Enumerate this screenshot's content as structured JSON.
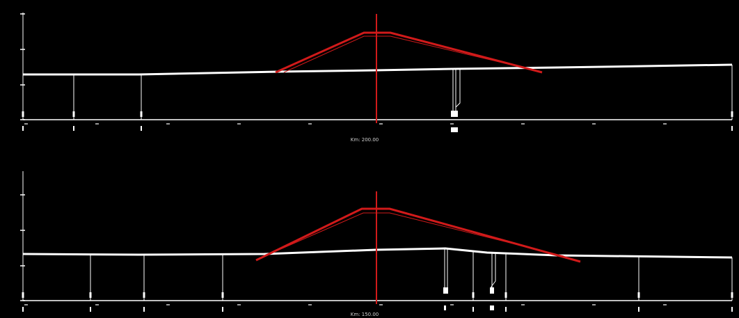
{
  "window": {
    "background": "#000000"
  },
  "colors": {
    "ground": "#ffffff",
    "design": "#d11a1a",
    "axis": "#ffffff"
  },
  "sections": [
    {
      "id": "top",
      "km_label": "Km: 200.00"
    },
    {
      "id": "bottom",
      "km_label": "Km: 150.00"
    }
  ]
}
